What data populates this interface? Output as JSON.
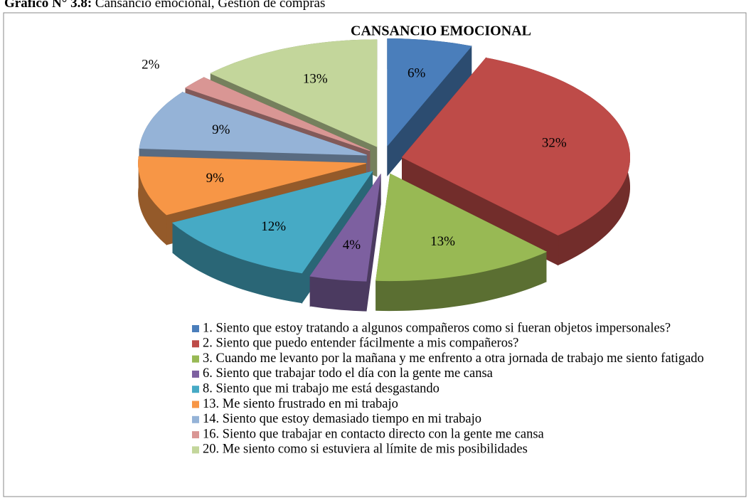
{
  "caption_label": "Gráfico N° 3.8:",
  "caption_text": "Cansancio emocional, Gestión de compras",
  "chart_data": {
    "type": "pie",
    "title": "CANSANCIO EMOCIONAL",
    "categories": [
      "1. Siento que estoy tratando a algunos compañeros como si fueran objetos impersonales?",
      "2. Siento que puedo entender fácilmente a mis compañeros?",
      "3. Cuando me levanto por la mañana y me enfrento a otra jornada de trabajo me siento fatigado",
      "6. Siento que trabajar todo el día con la gente me cansa",
      "8. Siento que mi trabajo me está desgastando",
      "13. Me siento frustrado en mi trabajo",
      "14. Siento que estoy demasiado tiempo en mi trabajo",
      "16. Siento que trabajar en contacto directo con la gente me cansa",
      "20. Me siento como si estuviera al límite de mis posibilidades"
    ],
    "values": [
      6,
      32,
      13,
      4,
      12,
      9,
      9,
      2,
      13
    ],
    "value_labels": [
      "6%",
      "32%",
      "13%",
      "4%",
      "12%",
      "9%",
      "9%",
      "2%",
      "13%"
    ],
    "colors": [
      "#4a7ebb",
      "#be4b48",
      "#98b954",
      "#7d60a0",
      "#46aac5",
      "#f79646",
      "#95b3d7",
      "#d99694",
      "#c3d69b"
    ],
    "legend": "bottom"
  }
}
